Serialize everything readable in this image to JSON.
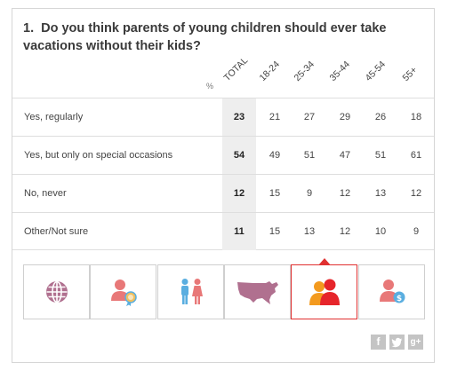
{
  "question": {
    "number": "1.",
    "text": "Do you think parents of young children should ever take vacations without their kids?"
  },
  "table": {
    "pct_label": "%",
    "columns": [
      "TOTAL",
      "18-24",
      "25-34",
      "35-44",
      "45-54",
      "55+"
    ],
    "rows": [
      {
        "label": "Yes, regularly",
        "values": [
          "23",
          "21",
          "27",
          "29",
          "26",
          "18"
        ]
      },
      {
        "label": "Yes, but only on special occasions",
        "values": [
          "54",
          "49",
          "51",
          "47",
          "51",
          "61"
        ]
      },
      {
        "label": "No, never",
        "values": [
          "12",
          "15",
          "9",
          "12",
          "13",
          "12"
        ]
      },
      {
        "label": "Other/Not sure",
        "values": [
          "11",
          "15",
          "13",
          "12",
          "10",
          "9"
        ]
      }
    ]
  },
  "tabs": [
    {
      "icon": "globe-icon",
      "active": false
    },
    {
      "icon": "education-icon",
      "active": false
    },
    {
      "icon": "gender-icon",
      "active": false
    },
    {
      "icon": "us-map-icon",
      "active": false
    },
    {
      "icon": "people-icon",
      "active": true
    },
    {
      "icon": "income-icon",
      "active": false
    }
  ],
  "colors": {
    "accent": "#e03030",
    "mauve": "#b0708f",
    "salmon": "#e87878",
    "orange": "#f39a1e",
    "red": "#e6252b",
    "blue": "#5aaee0"
  },
  "social": {
    "facebook": "f",
    "twitter": "t",
    "googleplus": "g+"
  }
}
